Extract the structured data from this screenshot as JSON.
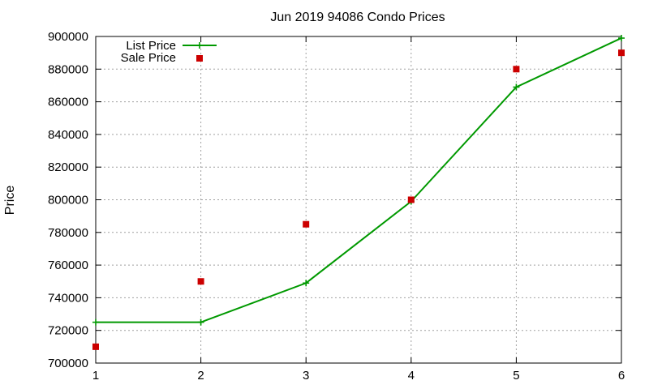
{
  "chart_data": {
    "type": "line",
    "title": "Jun 2019 94086 Condo Prices",
    "xlabel": "",
    "ylabel": "Price",
    "xlim": [
      1,
      6
    ],
    "ylim": [
      700000,
      900000
    ],
    "x_ticks": [
      "1",
      "2",
      "3",
      "4",
      "5",
      "6"
    ],
    "y_ticks": [
      "700000",
      "720000",
      "740000",
      "760000",
      "780000",
      "800000",
      "820000",
      "840000",
      "860000",
      "880000",
      "900000"
    ],
    "grid": true,
    "legend_position": "top-left",
    "series": [
      {
        "name": "List Price",
        "style": "line-with-plus-markers",
        "color": "#009900",
        "x": [
          1,
          2,
          3,
          4,
          5,
          6
        ],
        "values": [
          725000,
          725000,
          749000,
          799000,
          869000,
          899000
        ]
      },
      {
        "name": "Sale Price",
        "style": "square-markers",
        "color": "#cc0000",
        "x": [
          1,
          2,
          3,
          4,
          5,
          6
        ],
        "values": [
          710000,
          750000,
          785000,
          800000,
          880000,
          890000
        ]
      }
    ]
  }
}
